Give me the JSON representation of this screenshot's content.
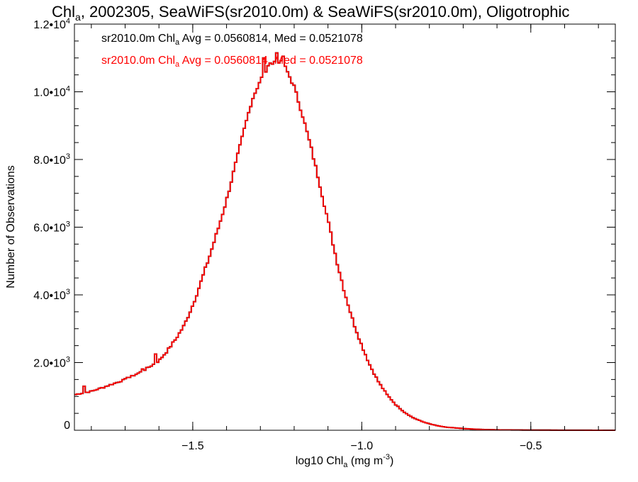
{
  "chart_data": {
    "type": "histogram",
    "title": {
      "prefix": "Chl",
      "prefix_sub": "a",
      "rest": ", 2002305, SeaWiFS(sr2010.0m) & SeaWiFS(sr2010.0m), Oligotrophic"
    },
    "xlabel": {
      "prefix": "log10 Chl",
      "prefix_sub": "a",
      "middle": " (mg m",
      "unit_sup": "-3",
      "suffix": ")"
    },
    "ylabel": "Number of Observations",
    "xlim": [
      -1.85,
      -0.25
    ],
    "ylim": [
      0,
      12000
    ],
    "x_ticks": [
      {
        "value": -1.5,
        "label": "−1.5"
      },
      {
        "value": -1.0,
        "label": "−1.0"
      },
      {
        "value": -0.5,
        "label": "−0.5"
      }
    ],
    "y_ticks": [
      {
        "value": 0,
        "mantissa": "0",
        "exp": ""
      },
      {
        "value": 2000,
        "mantissa": "2.0•10",
        "exp": "3"
      },
      {
        "value": 4000,
        "mantissa": "4.0•10",
        "exp": "3"
      },
      {
        "value": 6000,
        "mantissa": "6.0•10",
        "exp": "3"
      },
      {
        "value": 8000,
        "mantissa": "8.0•10",
        "exp": "3"
      },
      {
        "value": 10000,
        "mantissa": "1.0•10",
        "exp": "4"
      },
      {
        "value": 12000,
        "mantissa": "1.2•10",
        "exp": "4"
      }
    ],
    "grid": false,
    "legend_position": "top-left",
    "series": [
      {
        "name": "sr2010.0m",
        "color": "#000000",
        "stats_text": {
          "prefix": "sr2010.0m Chl",
          "prefix_sub": "a",
          "rest": " Avg = 0.0560814, Med = 0.0521078"
        }
      },
      {
        "name": "sr2010.0m",
        "color": "#ff0000",
        "stats_text": {
          "prefix": "sr2010.0m Chl",
          "prefix_sub": "a",
          "rest": " Avg = 0.0560814, Med = 0.0521078"
        }
      }
    ],
    "histogram": {
      "points": [
        [
          -1.85,
          1050
        ],
        [
          -1.8,
          1150
        ],
        [
          -1.75,
          1320
        ],
        [
          -1.7,
          1500
        ],
        [
          -1.65,
          1740
        ],
        [
          -1.6,
          2050
        ],
        [
          -1.575,
          2350
        ],
        [
          -1.55,
          2700
        ],
        [
          -1.525,
          3100
        ],
        [
          -1.5,
          3700
        ],
        [
          -1.475,
          4400
        ],
        [
          -1.45,
          5150
        ],
        [
          -1.425,
          5950
        ],
        [
          -1.4,
          6800
        ],
        [
          -1.375,
          7800
        ],
        [
          -1.35,
          8800
        ],
        [
          -1.325,
          9750
        ],
        [
          -1.3,
          10350
        ],
        [
          -1.275,
          10750
        ],
        [
          -1.25,
          10950
        ],
        [
          -1.225,
          10700
        ],
        [
          -1.2,
          10150
        ],
        [
          -1.175,
          9300
        ],
        [
          -1.15,
          8350
        ],
        [
          -1.125,
          7300
        ],
        [
          -1.1,
          6200
        ],
        [
          -1.075,
          5050
        ],
        [
          -1.05,
          4050
        ],
        [
          -1.025,
          3200
        ],
        [
          -1.0,
          2500
        ],
        [
          -0.975,
          1900
        ],
        [
          -0.95,
          1420
        ],
        [
          -0.925,
          1050
        ],
        [
          -0.9,
          760
        ],
        [
          -0.875,
          540
        ],
        [
          -0.85,
          380
        ],
        [
          -0.825,
          270
        ],
        [
          -0.8,
          190
        ],
        [
          -0.775,
          130
        ],
        [
          -0.75,
          90
        ],
        [
          -0.7,
          50
        ],
        [
          -0.65,
          25
        ],
        [
          -0.6,
          12
        ],
        [
          -0.5,
          5
        ],
        [
          -0.25,
          0
        ]
      ],
      "noise_bins": [
        [
          -1.823,
          1300
        ],
        [
          -1.762,
          1250
        ],
        [
          -1.691,
          1560
        ],
        [
          -1.648,
          1810
        ],
        [
          -1.612,
          2250
        ],
        [
          -1.288,
          11000
        ],
        [
          -1.268,
          10850
        ],
        [
          -1.252,
          11150
        ],
        [
          -1.236,
          10920
        ],
        [
          -1.232,
          11050
        ]
      ]
    }
  }
}
